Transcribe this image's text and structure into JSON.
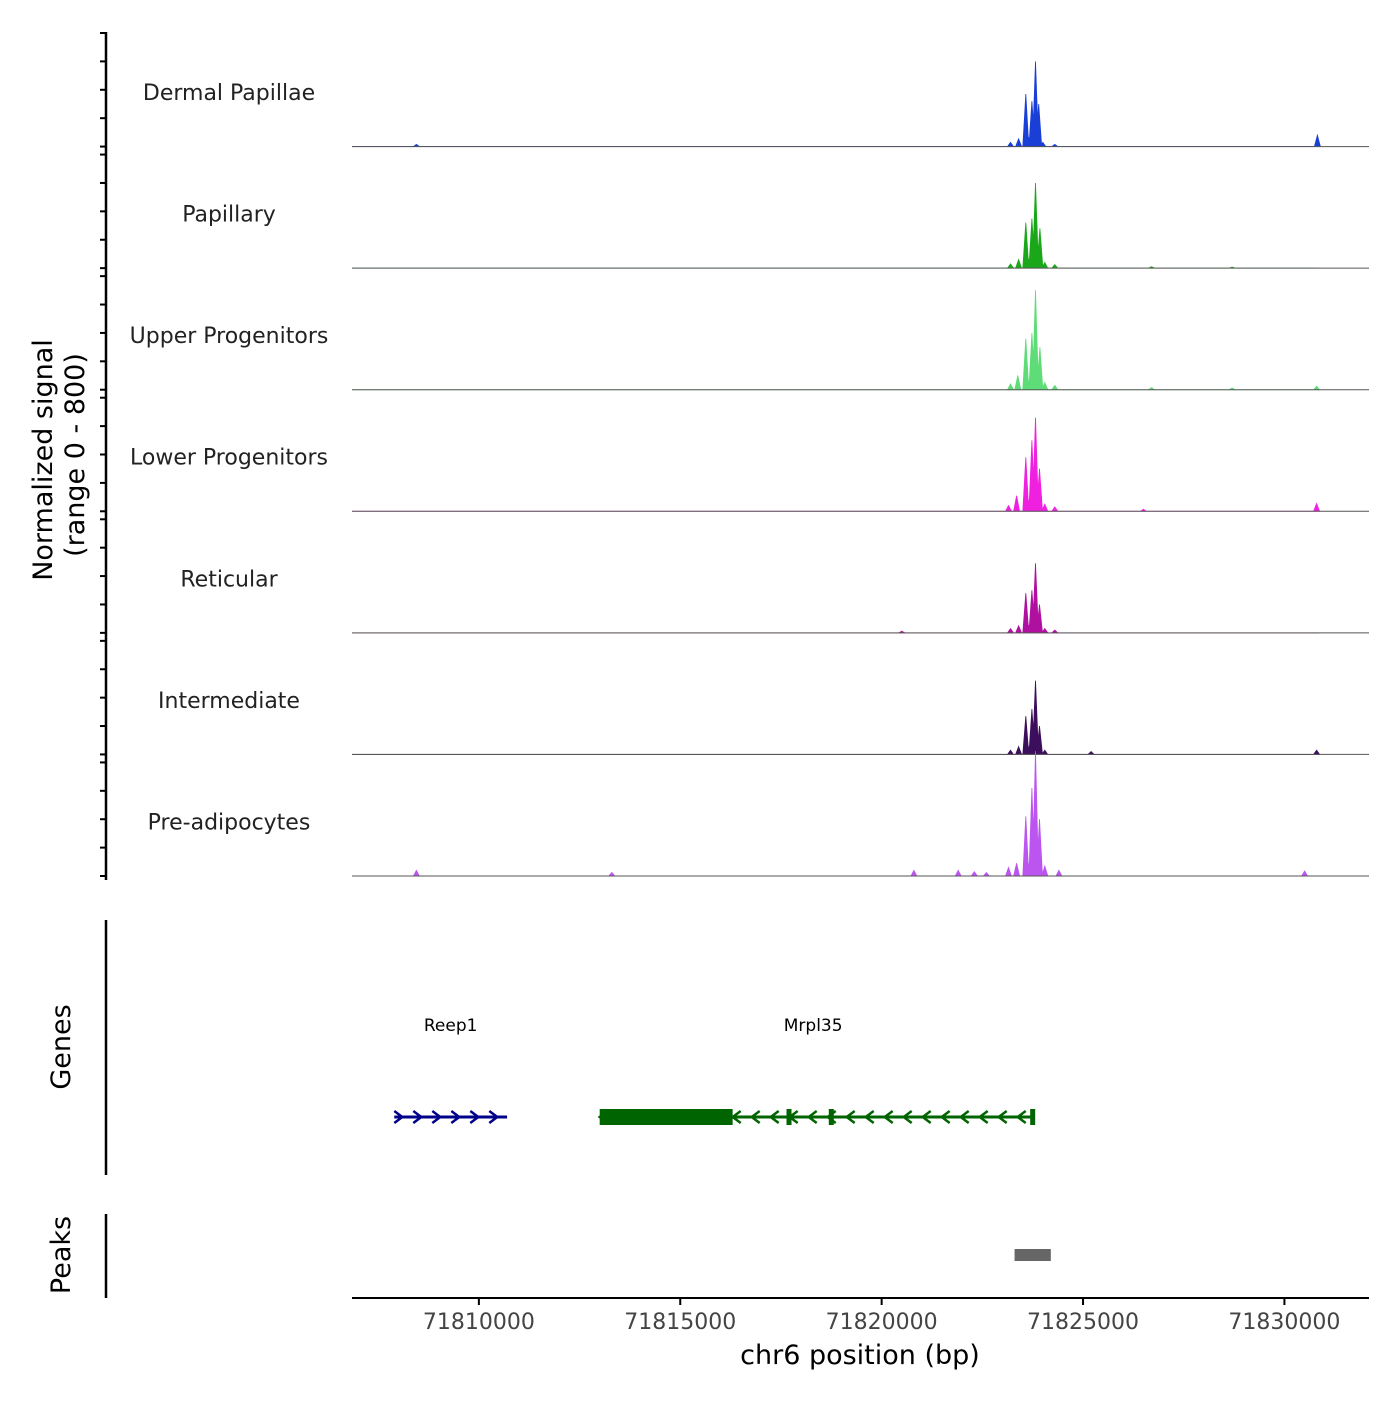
{
  "chart_data": {
    "type": "area",
    "title": "",
    "ylabel_line1": "Normalized signal",
    "ylabel_line2": "(range 0 - 800)",
    "xlabel": "chr6 position (bp)",
    "chromosome": "chr6",
    "xlim": [
      71806850,
      71832100
    ],
    "ylim": [
      0,
      800
    ],
    "x_ticks": [
      71810000,
      71815000,
      71820000,
      71825000,
      71830000
    ],
    "x_tick_labels": [
      "71810000",
      "71815000",
      "71820000",
      "71825000",
      "71830000"
    ],
    "region_end": 71830850,
    "tracks": [
      {
        "name": "Dermal Papillae",
        "color": "#1a3fd6",
        "points": [
          [
            71823200,
            30
          ],
          [
            71823400,
            55
          ],
          [
            71823580,
            370
          ],
          [
            71823650,
            60
          ],
          [
            71823730,
            320
          ],
          [
            71823820,
            600
          ],
          [
            71823900,
            300
          ],
          [
            71824000,
            30
          ],
          [
            71824300,
            15
          ],
          [
            71808450,
            15
          ],
          [
            71830820,
            80
          ]
        ]
      },
      {
        "name": "Papillary",
        "color": "#1aa81a",
        "points": [
          [
            71823200,
            30
          ],
          [
            71823400,
            60
          ],
          [
            71823580,
            320
          ],
          [
            71823650,
            60
          ],
          [
            71823730,
            350
          ],
          [
            71823820,
            600
          ],
          [
            71823930,
            280
          ],
          [
            71824050,
            40
          ],
          [
            71824300,
            25
          ],
          [
            71826700,
            10
          ],
          [
            71828700,
            8
          ]
        ]
      },
      {
        "name": "Upper Progenitors",
        "color": "#5edc77",
        "points": [
          [
            71823200,
            40
          ],
          [
            71823380,
            100
          ],
          [
            71823580,
            360
          ],
          [
            71823650,
            60
          ],
          [
            71823730,
            400
          ],
          [
            71823820,
            700
          ],
          [
            71823930,
            300
          ],
          [
            71824050,
            50
          ],
          [
            71824300,
            30
          ],
          [
            71826700,
            15
          ],
          [
            71828700,
            12
          ],
          [
            71830800,
            25
          ]
        ]
      },
      {
        "name": "Lower Progenitors",
        "color": "#f020e0",
        "points": [
          [
            71823150,
            40
          ],
          [
            71823350,
            110
          ],
          [
            71823580,
            380
          ],
          [
            71823650,
            70
          ],
          [
            71823730,
            500
          ],
          [
            71823820,
            660
          ],
          [
            71823920,
            300
          ],
          [
            71824050,
            50
          ],
          [
            71824300,
            30
          ],
          [
            71826500,
            15
          ],
          [
            71830800,
            55
          ]
        ]
      },
      {
        "name": "Reticular",
        "color": "#b010a0",
        "points": [
          [
            71823200,
            30
          ],
          [
            71823400,
            50
          ],
          [
            71823580,
            280
          ],
          [
            71823650,
            50
          ],
          [
            71823730,
            300
          ],
          [
            71823820,
            490
          ],
          [
            71823920,
            200
          ],
          [
            71824050,
            30
          ],
          [
            71824300,
            20
          ],
          [
            71820500,
            12
          ]
        ]
      },
      {
        "name": "Intermediate",
        "color": "#3c0f5c",
        "points": [
          [
            71823200,
            30
          ],
          [
            71823400,
            55
          ],
          [
            71823580,
            270
          ],
          [
            71823650,
            50
          ],
          [
            71823730,
            320
          ],
          [
            71823820,
            520
          ],
          [
            71823920,
            200
          ],
          [
            71824050,
            30
          ],
          [
            71825200,
            20
          ],
          [
            71830800,
            30
          ]
        ]
      },
      {
        "name": "Pre-adipocytes",
        "color": "#bb55f0",
        "points": [
          [
            71821900,
            40
          ],
          [
            71822300,
            30
          ],
          [
            71822600,
            25
          ],
          [
            71823150,
            60
          ],
          [
            71823350,
            90
          ],
          [
            71823580,
            420
          ],
          [
            71823650,
            80
          ],
          [
            71823730,
            620
          ],
          [
            71823820,
            880
          ],
          [
            71823920,
            400
          ],
          [
            71824050,
            70
          ],
          [
            71824400,
            40
          ],
          [
            71808450,
            40
          ],
          [
            71813300,
            25
          ],
          [
            71820800,
            40
          ],
          [
            71830500,
            35
          ]
        ]
      }
    ],
    "genes_label": "Genes",
    "genes": [
      {
        "name": "Reep1",
        "start": 71807900,
        "end": 71810700,
        "strand": "+",
        "color": "#00008b",
        "label_x": 71809300
      },
      {
        "name": "Mrpl35",
        "start": 71813000,
        "end": 71823800,
        "strand": "-",
        "color": "#006400",
        "label_x": 71818300,
        "thick_start": 71813000,
        "thick_end": 71816300,
        "exons": [
          71817700,
          71818750,
          71823750
        ]
      }
    ],
    "peaks_label": "Peaks",
    "peaks": [
      {
        "start": 71823300,
        "end": 71824200,
        "color": "#666666"
      }
    ]
  }
}
